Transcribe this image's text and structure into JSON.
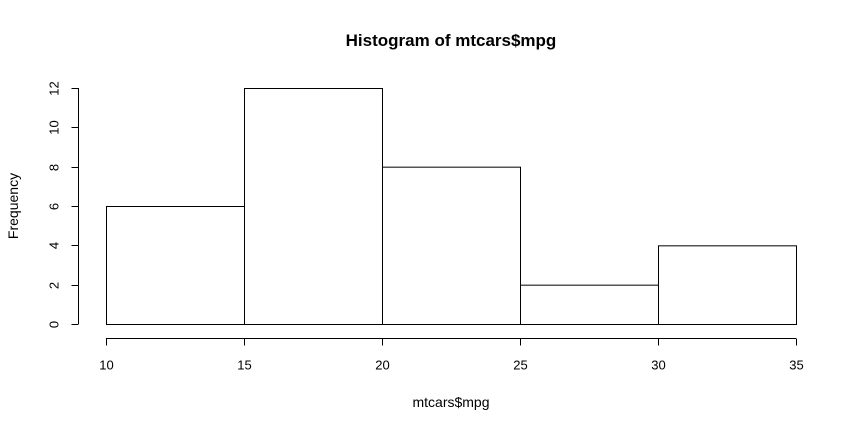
{
  "chart_data": {
    "type": "bar",
    "title": "Histogram of mtcars$mpg",
    "xlabel": "mtcars$mpg",
    "ylabel": "Frequency",
    "bins": [
      {
        "start": 10,
        "end": 15,
        "count": 6
      },
      {
        "start": 15,
        "end": 20,
        "count": 12
      },
      {
        "start": 20,
        "end": 25,
        "count": 8
      },
      {
        "start": 25,
        "end": 30,
        "count": 2
      },
      {
        "start": 30,
        "end": 35,
        "count": 4
      }
    ],
    "xticks": [
      10,
      15,
      20,
      25,
      30,
      35
    ],
    "yticks": [
      0,
      2,
      4,
      6,
      8,
      10,
      12
    ],
    "xlim": [
      10,
      35
    ],
    "ylim": [
      0,
      12
    ],
    "grid": false,
    "colors": {
      "bar_fill": "#ffffff",
      "bar_stroke": "#000000"
    }
  }
}
